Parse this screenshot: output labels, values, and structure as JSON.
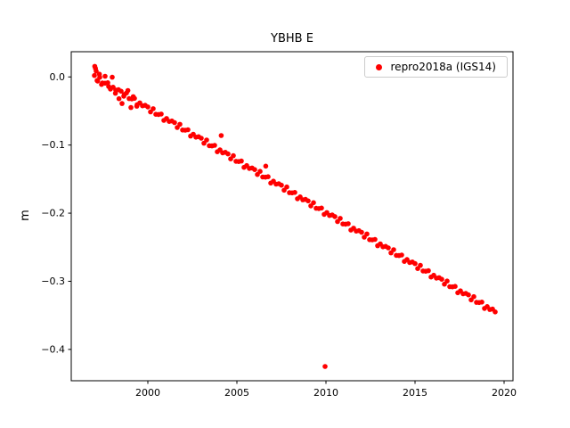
{
  "chart_data": {
    "type": "scatter",
    "title": "YBHB E",
    "xlabel": "",
    "ylabel": "m",
    "xlim": [
      1995.7,
      2020.5
    ],
    "ylim": [
      -0.446,
      0.037
    ],
    "grid": false,
    "xticks": [
      2000,
      2005,
      2010,
      2015,
      2020
    ],
    "xtick_labels": [
      "2000",
      "2005",
      "2010",
      "2015",
      "2020"
    ],
    "yticks": [
      0.0,
      -0.1,
      -0.2,
      -0.3,
      -0.4
    ],
    "ytick_labels": [
      "0.0",
      "−0.1",
      "−0.2",
      "−0.3",
      "−0.4"
    ],
    "legend": {
      "position": "upper right",
      "entries": [
        {
          "label": "repro2018a (IGS14)",
          "marker": "circle",
          "color": "#ff0000"
        }
      ]
    },
    "series": [
      {
        "name": "repro2018a (IGS14)",
        "color": "#ff0000",
        "marker": "circle",
        "marker_radius_px": 2.8,
        "points": [
          [
            1997.0,
            0.002
          ],
          [
            1997.15,
            -0.0053
          ],
          [
            1997.3,
            -0.0006
          ],
          [
            1997.45,
            -0.0089
          ],
          [
            1997.6,
            -0.0092
          ],
          [
            1997.75,
            -0.0085
          ],
          [
            1997.9,
            -0.0178
          ],
          [
            1998.05,
            -0.0151
          ],
          [
            1998.2,
            -0.0194
          ],
          [
            1998.35,
            -0.0187
          ],
          [
            1998.5,
            -0.021
          ],
          [
            1998.65,
            -0.0283
          ],
          [
            1998.8,
            -0.0236
          ],
          [
            1998.95,
            -0.0319
          ],
          [
            1999.1,
            -0.0322
          ],
          [
            1999.25,
            -0.0315
          ],
          [
            1999.4,
            -0.0408
          ],
          [
            1999.55,
            -0.0381
          ],
          [
            1999.7,
            -0.0424
          ],
          [
            1999.85,
            -0.0417
          ],
          [
            2000.0,
            -0.044
          ],
          [
            2000.15,
            -0.0513
          ],
          [
            2000.3,
            -0.0466
          ],
          [
            2000.45,
            -0.0549
          ],
          [
            2000.6,
            -0.0552
          ],
          [
            2000.75,
            -0.0545
          ],
          [
            2000.9,
            -0.0638
          ],
          [
            2001.05,
            -0.0611
          ],
          [
            2001.2,
            -0.0654
          ],
          [
            2001.35,
            -0.0647
          ],
          [
            2001.5,
            -0.067
          ],
          [
            2001.65,
            -0.0743
          ],
          [
            2001.8,
            -0.0696
          ],
          [
            2001.95,
            -0.0779
          ],
          [
            2002.1,
            -0.0782
          ],
          [
            2002.25,
            -0.0775
          ],
          [
            2002.4,
            -0.0868
          ],
          [
            2002.55,
            -0.0841
          ],
          [
            2002.7,
            -0.0884
          ],
          [
            2002.85,
            -0.0877
          ],
          [
            2003.0,
            -0.09
          ],
          [
            2003.15,
            -0.0973
          ],
          [
            2003.3,
            -0.0926
          ],
          [
            2003.45,
            -0.1009
          ],
          [
            2003.6,
            -0.1012
          ],
          [
            2003.75,
            -0.1005
          ],
          [
            2003.9,
            -0.1098
          ],
          [
            2004.05,
            -0.1071
          ],
          [
            2004.2,
            -0.1114
          ],
          [
            2004.35,
            -0.1107
          ],
          [
            2004.5,
            -0.113
          ],
          [
            2004.65,
            -0.1203
          ],
          [
            2004.8,
            -0.1156
          ],
          [
            2004.95,
            -0.1239
          ],
          [
            2005.1,
            -0.1242
          ],
          [
            2005.25,
            -0.1235
          ],
          [
            2005.4,
            -0.1328
          ],
          [
            2005.55,
            -0.1301
          ],
          [
            2005.7,
            -0.1344
          ],
          [
            2005.85,
            -0.1337
          ],
          [
            2006.0,
            -0.136
          ],
          [
            2006.15,
            -0.1433
          ],
          [
            2006.3,
            -0.1386
          ],
          [
            2006.45,
            -0.1469
          ],
          [
            2006.6,
            -0.1472
          ],
          [
            2006.75,
            -0.1465
          ],
          [
            2006.9,
            -0.1558
          ],
          [
            2007.05,
            -0.1531
          ],
          [
            2007.2,
            -0.1574
          ],
          [
            2007.35,
            -0.1567
          ],
          [
            2007.5,
            -0.159
          ],
          [
            2007.65,
            -0.1663
          ],
          [
            2007.8,
            -0.1616
          ],
          [
            2007.95,
            -0.1699
          ],
          [
            2008.1,
            -0.1702
          ],
          [
            2008.25,
            -0.1695
          ],
          [
            2008.4,
            -0.1788
          ],
          [
            2008.55,
            -0.1761
          ],
          [
            2008.7,
            -0.1804
          ],
          [
            2008.85,
            -0.1797
          ],
          [
            2009.0,
            -0.182
          ],
          [
            2009.15,
            -0.1893
          ],
          [
            2009.3,
            -0.1846
          ],
          [
            2009.45,
            -0.1929
          ],
          [
            2009.6,
            -0.1932
          ],
          [
            2009.75,
            -0.1925
          ],
          [
            2009.9,
            -0.2018
          ],
          [
            2010.05,
            -0.1991
          ],
          [
            2010.2,
            -0.2034
          ],
          [
            2010.35,
            -0.2027
          ],
          [
            2010.5,
            -0.205
          ],
          [
            2010.65,
            -0.2123
          ],
          [
            2010.8,
            -0.2076
          ],
          [
            2010.95,
            -0.2159
          ],
          [
            2011.1,
            -0.2162
          ],
          [
            2011.25,
            -0.2155
          ],
          [
            2011.4,
            -0.2248
          ],
          [
            2011.55,
            -0.2221
          ],
          [
            2011.7,
            -0.2264
          ],
          [
            2011.85,
            -0.2257
          ],
          [
            2012.0,
            -0.228
          ],
          [
            2012.15,
            -0.2353
          ],
          [
            2012.3,
            -0.2306
          ],
          [
            2012.45,
            -0.2389
          ],
          [
            2012.6,
            -0.2392
          ],
          [
            2012.75,
            -0.2385
          ],
          [
            2012.9,
            -0.2478
          ],
          [
            2013.05,
            -0.2451
          ],
          [
            2013.2,
            -0.2494
          ],
          [
            2013.35,
            -0.2487
          ],
          [
            2013.5,
            -0.251
          ],
          [
            2013.65,
            -0.2583
          ],
          [
            2013.8,
            -0.2536
          ],
          [
            2013.95,
            -0.2619
          ],
          [
            2014.1,
            -0.2622
          ],
          [
            2014.25,
            -0.2615
          ],
          [
            2014.4,
            -0.2708
          ],
          [
            2014.55,
            -0.2681
          ],
          [
            2014.7,
            -0.2724
          ],
          [
            2014.85,
            -0.2717
          ],
          [
            2015.0,
            -0.274
          ],
          [
            2015.15,
            -0.2813
          ],
          [
            2015.3,
            -0.2766
          ],
          [
            2015.45,
            -0.2849
          ],
          [
            2015.6,
            -0.2852
          ],
          [
            2015.75,
            -0.2845
          ],
          [
            2015.9,
            -0.2938
          ],
          [
            2016.05,
            -0.2911
          ],
          [
            2016.2,
            -0.2954
          ],
          [
            2016.35,
            -0.2947
          ],
          [
            2016.5,
            -0.297
          ],
          [
            2016.65,
            -0.3043
          ],
          [
            2016.8,
            -0.2996
          ],
          [
            2016.95,
            -0.3079
          ],
          [
            2017.1,
            -0.3082
          ],
          [
            2017.25,
            -0.3075
          ],
          [
            2017.4,
            -0.3168
          ],
          [
            2017.55,
            -0.3141
          ],
          [
            2017.7,
            -0.3184
          ],
          [
            2017.85,
            -0.3177
          ],
          [
            2018.0,
            -0.32
          ],
          [
            2018.15,
            -0.3273
          ],
          [
            2018.3,
            -0.3226
          ],
          [
            2018.45,
            -0.3309
          ],
          [
            2018.6,
            -0.3312
          ],
          [
            2018.75,
            -0.3305
          ],
          [
            2018.9,
            -0.3398
          ],
          [
            2019.05,
            -0.3371
          ],
          [
            2019.2,
            -0.3414
          ],
          [
            2019.35,
            -0.3407
          ],
          [
            2019.5,
            -0.345
          ],
          [
            1997.02,
            0.0155
          ],
          [
            1997.06,
            0.0125
          ],
          [
            1997.1,
            0.0085
          ],
          [
            1997.18,
            -0.006
          ],
          [
            1997.28,
            0.004
          ],
          [
            1997.4,
            -0.011
          ],
          [
            1997.6,
            0.001
          ],
          [
            1997.8,
            -0.014
          ],
          [
            1998.0,
            -0.0005
          ],
          [
            1998.18,
            -0.024
          ],
          [
            1998.38,
            -0.032
          ],
          [
            1998.55,
            -0.039
          ],
          [
            1998.68,
            -0.026
          ],
          [
            1998.88,
            -0.02
          ],
          [
            1999.05,
            -0.045
          ],
          [
            1999.18,
            -0.029
          ],
          [
            1999.38,
            -0.043
          ],
          [
            2004.12,
            -0.086
          ],
          [
            2006.62,
            -0.131
          ],
          [
            2009.95,
            -0.425
          ]
        ]
      }
    ]
  }
}
